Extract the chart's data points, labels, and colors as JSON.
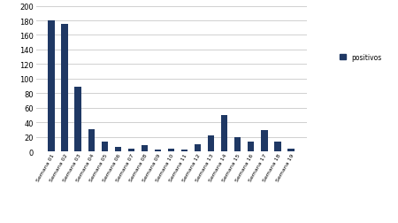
{
  "categories": [
    "Semana 01",
    "Semana 02",
    "Semana 03",
    "Semana 04",
    "Semana 05",
    "Semana 06",
    "Semana 07",
    "Semana 08",
    "Semana 09",
    "Semana 10",
    "Semana 11",
    "Semana 12",
    "Semana 13",
    "Semana 14",
    "Semana 15",
    "Semana 16",
    "Semana 17",
    "Semana 18",
    "Semana 19"
  ],
  "values": [
    180,
    175,
    89,
    30,
    13,
    6,
    4,
    8,
    3,
    4,
    2,
    10,
    22,
    50,
    19,
    13,
    29,
    13,
    4
  ],
  "bar_color": "#1F3864",
  "ylim": [
    0,
    200
  ],
  "yticks": [
    0,
    20,
    40,
    60,
    80,
    100,
    120,
    140,
    160,
    180,
    200
  ],
  "legend_label": "positivos",
  "background_color": "#ffffff",
  "grid_color": "#d0d0d0"
}
